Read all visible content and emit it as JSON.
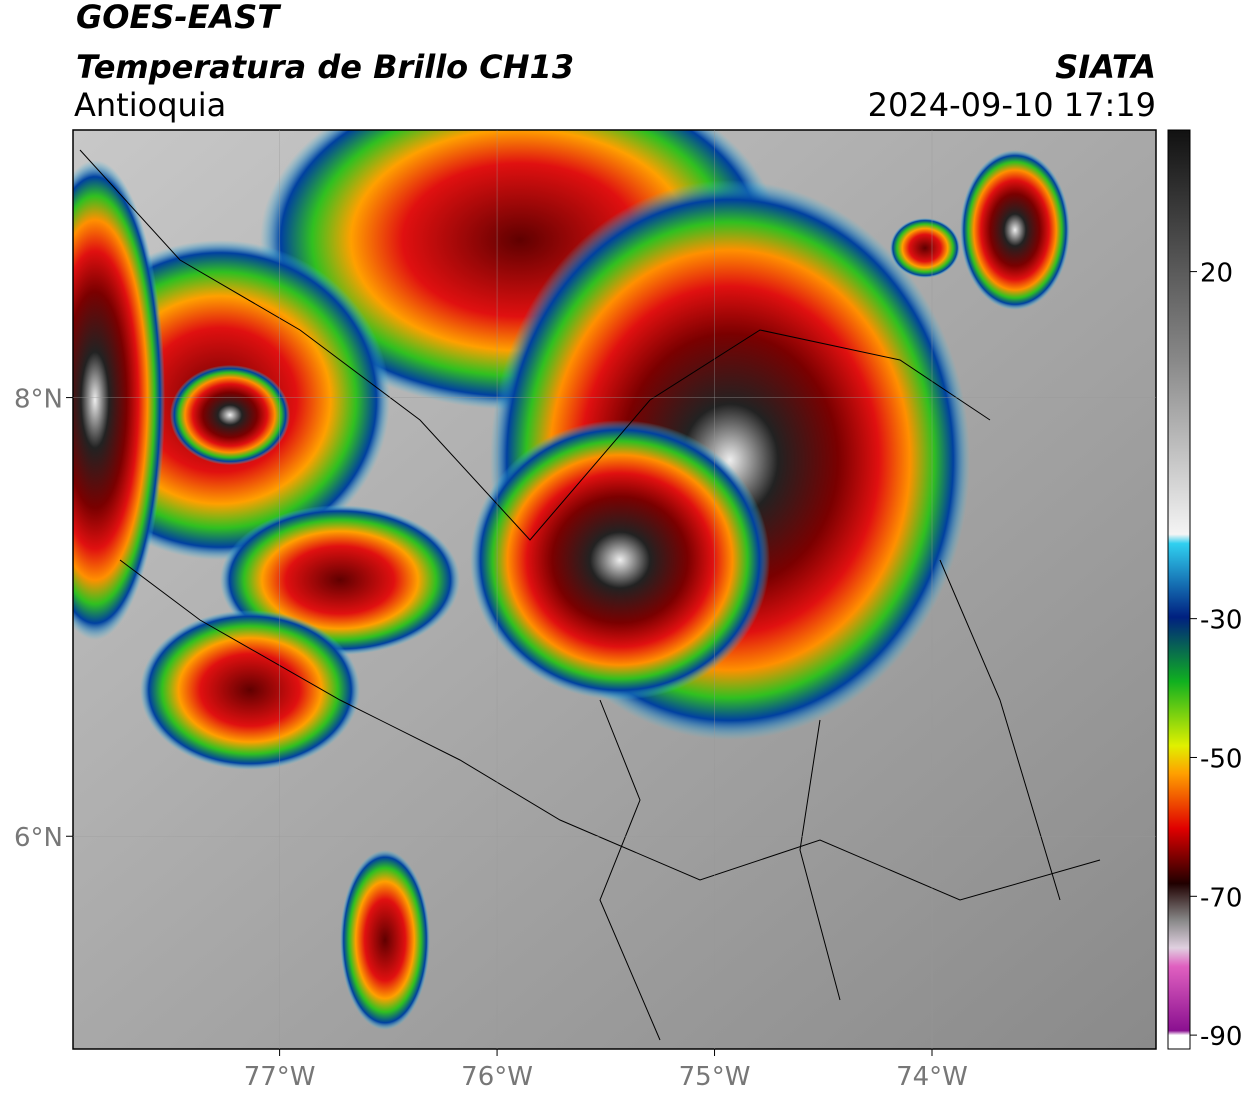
{
  "header": {
    "title": "GOES-EAST",
    "subtitle": "Temperatura de Brillo CH13",
    "region": "Antioquia",
    "source": "SIATA",
    "timestamp": "2024-09-10 17:19"
  },
  "map": {
    "xlim": [
      -77.95,
      -72.97
    ],
    "ylim": [
      5.03,
      9.22
    ],
    "xticks": [
      {
        "value": -77,
        "label": "77°W"
      },
      {
        "value": -76,
        "label": "76°W"
      },
      {
        "value": -75,
        "label": "75°W"
      },
      {
        "value": -74,
        "label": "74°W"
      }
    ],
    "yticks": [
      {
        "value": 8,
        "label": "8°N"
      },
      {
        "value": 6,
        "label": "6°N"
      }
    ],
    "grid": true
  },
  "colorbar": {
    "lim": [
      -92,
      40.4
    ],
    "ticks": [
      20,
      -30,
      -50,
      -70,
      -90
    ]
  }
}
